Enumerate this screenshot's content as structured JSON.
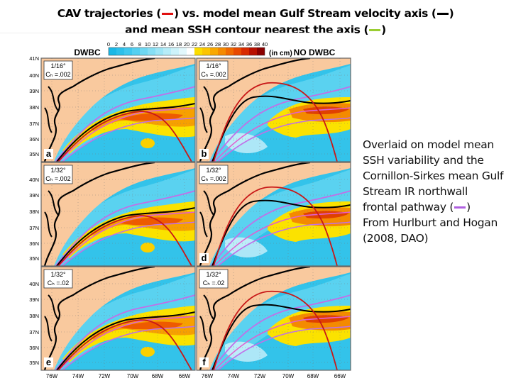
{
  "title": {
    "line1_a": "CAV trajectories (",
    "line1_b": ") vs. model mean Gulf Stream velocity axis (",
    "line1_c": ")",
    "line2_a": "and mean SSH contour nearest the axis (",
    "line2_b": ")"
  },
  "legend_colors": {
    "cav": "#e01010",
    "axis": "#000000",
    "ssh_contour": "#9acd32",
    "ir_front": "#b060e0"
  },
  "side_text": {
    "line1": "Overlaid on model mean SSH variability and the Cornillon-Sirkes mean Gulf Stream IR northwall frontal pathway (",
    "line1_end": ")",
    "line2": "From Hurlburt and Hogan (2008, DAO)"
  },
  "figure": {
    "left_header": "DWBC",
    "right_header": "NO DWBC",
    "colorbar": {
      "ticks": [
        "0",
        "2",
        "4",
        "6",
        "8",
        "10",
        "12",
        "14",
        "16",
        "18",
        "20",
        "22",
        "24",
        "26",
        "28",
        "30",
        "32",
        "34",
        "36",
        "38",
        "40"
      ],
      "unit": "(in cm)"
    },
    "lat_ticks": [
      "41N",
      "40N",
      "39N",
      "38N",
      "37N",
      "36N",
      "35N"
    ],
    "lon_ticks": [
      "76W",
      "74W",
      "72W",
      "70W",
      "68W",
      "66W"
    ],
    "panels": [
      {
        "letter": "a",
        "res": "1/16°",
        "cb": "Cₕ =.002"
      },
      {
        "letter": "b",
        "res": "1/16°",
        "cb": "Cₕ =.002"
      },
      {
        "letter": "",
        "res": "1/32°",
        "cb": "Cₕ =.002"
      },
      {
        "letter": "d",
        "res": "1/32°",
        "cb": "Cₕ =.002"
      },
      {
        "letter": "e",
        "res": "1/32°",
        "cb": "Cₕ =.02"
      },
      {
        "letter": "f",
        "res": "1/32°",
        "cb": "Cₕ =.02"
      }
    ]
  }
}
